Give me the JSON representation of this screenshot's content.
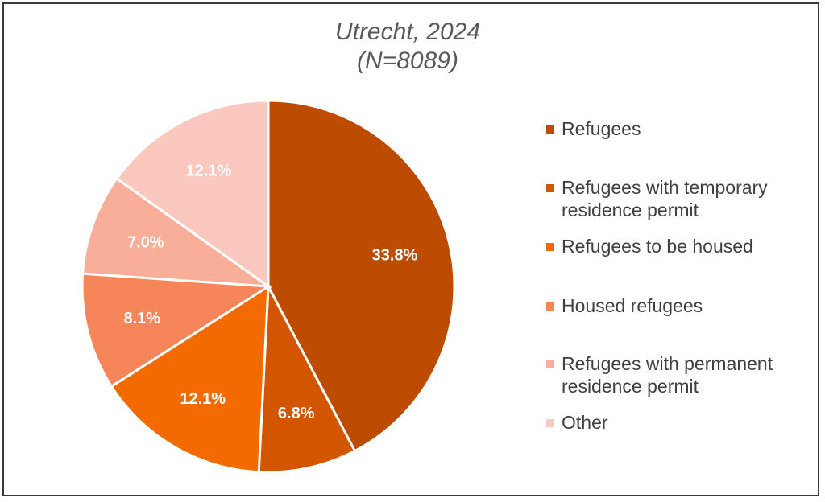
{
  "chart_data": {
    "type": "pie",
    "title": "Utrecht, 2024",
    "subtitle": "(N=8089)",
    "slices": [
      {
        "label": "Refugees",
        "value": 33.8,
        "display": "33.8%",
        "color": "#BD4B00"
      },
      {
        "label": "Refugees with temporary residence permit",
        "value": 6.8,
        "display": "6.8%",
        "color": "#D45500"
      },
      {
        "label": "Refugees to be housed",
        "value": 12.1,
        "display": "12.1%",
        "color": "#F26A00"
      },
      {
        "label": "Housed refugees",
        "value": 8.1,
        "display": "8.1%",
        "color": "#F7855A"
      },
      {
        "label": "Refugees with permanent residence permit",
        "value": 7.0,
        "display": "7.0%",
        "color": "#F8AE98"
      },
      {
        "label": "Other",
        "value": 12.1,
        "display": "12.1%",
        "color": "#FAC8BE"
      }
    ],
    "legend_position": "right"
  }
}
